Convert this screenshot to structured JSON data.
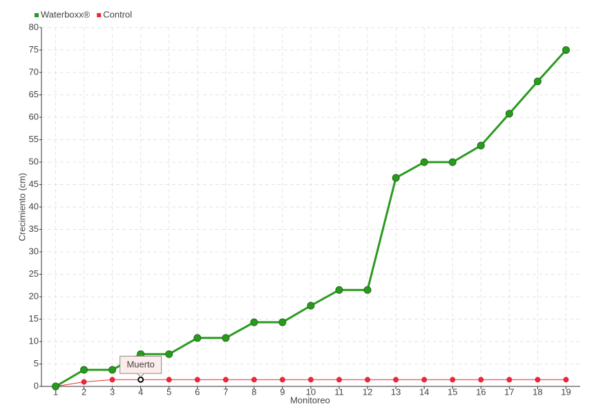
{
  "chart_data": {
    "type": "line",
    "x_label": "Monitoreo",
    "y_label": "Crecimiento (cm)",
    "categories": [
      "1",
      "2",
      "3",
      "4",
      "5",
      "6",
      "7",
      "8",
      "9",
      "10",
      "11",
      "12",
      "13",
      "14",
      "15",
      "16",
      "17",
      "18",
      "19"
    ],
    "series": [
      {
        "name": "Waterboxx®",
        "color": "#2a9a1f",
        "values": [
          0,
          3.7,
          3.7,
          7.2,
          7.2,
          10.8,
          10.8,
          14.3,
          14.3,
          18,
          21.5,
          21.5,
          46.5,
          50,
          50,
          53.7,
          60.8,
          68,
          75
        ]
      },
      {
        "name": "Control",
        "color": "#e8283a",
        "values": [
          0,
          1,
          1.5,
          1.5,
          1.5,
          1.5,
          1.5,
          1.5,
          1.5,
          1.5,
          1.5,
          1.5,
          1.5,
          1.5,
          1.5,
          1.5,
          1.5,
          1.5,
          1.5
        ]
      }
    ],
    "annotations": [
      {
        "text": "Muerto",
        "category": "4",
        "series": "Control"
      }
    ],
    "ylim": [
      0,
      80
    ],
    "yticks": [
      0,
      5,
      10,
      15,
      20,
      25,
      30,
      35,
      40,
      45,
      50,
      55,
      60,
      65,
      70,
      75,
      80
    ],
    "grid": true,
    "legend": "top-left"
  }
}
